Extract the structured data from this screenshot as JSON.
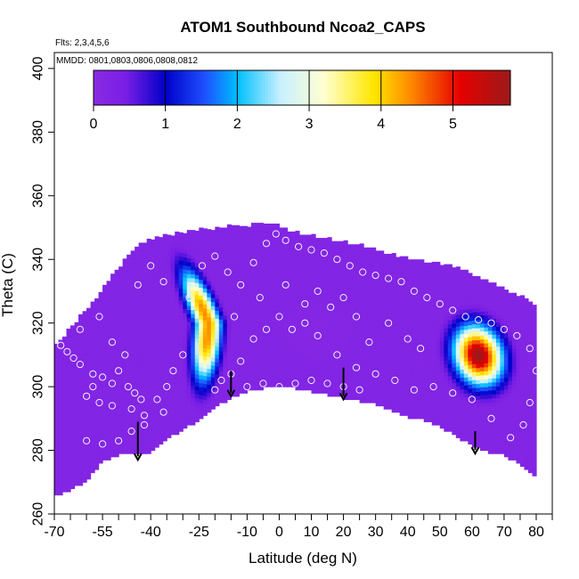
{
  "chart_data": {
    "type": "heatmap",
    "title": "ATOM1 Southbound Ncoa2_CAPS",
    "notes": [
      "Flts: 2,3,4,5,6",
      "MMDD: 0801,0803,0806,0808,0812"
    ],
    "xlabel": "Latitude (deg N)",
    "ylabel": "Theta (C)",
    "xlim": [
      -70,
      85
    ],
    "ylim": [
      260,
      405
    ],
    "x_ticks": [
      -70,
      -55,
      -40,
      -25,
      -10,
      0,
      10,
      20,
      30,
      40,
      50,
      60,
      70,
      80
    ],
    "x_tick_labels": [
      "-70",
      "-55",
      "-40",
      "-25",
      "-10",
      "0",
      "10",
      "20",
      "30",
      "40",
      "50",
      "60",
      "70",
      "80"
    ],
    "x_minor_ticks": [
      -65,
      -60,
      -50,
      -45,
      -35,
      -30,
      -20,
      -15,
      -5,
      5,
      15,
      25,
      35,
      45,
      55,
      65,
      75,
      85
    ],
    "y_ticks": [
      260,
      280,
      300,
      320,
      340,
      360,
      380,
      400
    ],
    "y_tick_labels": [
      "260",
      "280",
      "300",
      "320",
      "340",
      "360",
      "380",
      "400"
    ],
    "colorbar": {
      "min": 0,
      "max": 5.8,
      "ticks": [
        0,
        1,
        2,
        3,
        4,
        5
      ],
      "tick_labels": [
        "0",
        "1",
        "2",
        "3",
        "4",
        "5"
      ],
      "colors": [
        "#8a2be2",
        "#7a1ee6",
        "#0000c8",
        "#1e50ff",
        "#00bfff",
        "#c8f0ff",
        "#ffffd2",
        "#ffe600",
        "#ff8c00",
        "#e60000",
        "#9b1a1a"
      ],
      "stops": [
        0,
        0.45,
        1.0,
        1.55,
        2.0,
        2.6,
        3.2,
        3.9,
        4.4,
        5.1,
        5.8
      ]
    },
    "background_value": 0.2,
    "coverage": {
      "lat": [
        -70,
        -65,
        -60,
        -55,
        -50,
        -45,
        -40,
        -35,
        -30,
        -25,
        -20,
        -15,
        -10,
        -5,
        0,
        5,
        10,
        15,
        20,
        25,
        30,
        35,
        40,
        45,
        50,
        55,
        60,
        65,
        70,
        75,
        80
      ],
      "bottom": [
        266,
        268,
        271,
        277,
        279,
        279,
        280,
        284,
        287,
        290,
        294,
        297,
        299,
        300,
        300,
        300,
        299,
        298,
        297,
        296,
        295,
        293,
        291,
        290,
        288,
        285,
        282,
        280,
        279,
        276,
        272
      ],
      "top": [
        312,
        318,
        324,
        330,
        337,
        343,
        346,
        347,
        348,
        349,
        349,
        350,
        350,
        351,
        350,
        348,
        347,
        346,
        345,
        344,
        343,
        341,
        340,
        339,
        338,
        337,
        335,
        333,
        330,
        328,
        325
      ]
    },
    "features": [
      {
        "name": "southern-ridge",
        "lat_top": -30,
        "theta_top": 340,
        "lat_mid": -22,
        "theta_mid": 320,
        "lat_bottom": -24,
        "theta_bottom": 298,
        "peak": 4.4
      },
      {
        "name": "northern-blob",
        "lat_center": 62,
        "theta_center": 310,
        "peak": 5.8
      }
    ],
    "samples": [
      [
        -68,
        313
      ],
      [
        -66,
        311
      ],
      [
        -64,
        309
      ],
      [
        -62,
        307
      ],
      [
        -58,
        304
      ],
      [
        -55,
        303
      ],
      [
        -52,
        301
      ],
      [
        -50,
        305
      ],
      [
        -47,
        300
      ],
      [
        -45,
        298
      ],
      [
        -43,
        296
      ],
      [
        -60,
        297
      ],
      [
        -56,
        295
      ],
      [
        -52,
        294
      ],
      [
        -46,
        293
      ],
      [
        -42,
        291
      ],
      [
        -38,
        296
      ],
      [
        -35,
        300
      ],
      [
        -33,
        305
      ],
      [
        -30,
        310
      ],
      [
        -28,
        328
      ],
      [
        -24,
        338
      ],
      [
        -20,
        341
      ],
      [
        -16,
        336
      ],
      [
        -12,
        332
      ],
      [
        -8,
        339
      ],
      [
        -4,
        345
      ],
      [
        -1,
        348
      ],
      [
        2,
        346
      ],
      [
        6,
        344
      ],
      [
        10,
        343
      ],
      [
        14,
        342
      ],
      [
        18,
        340
      ],
      [
        22,
        338
      ],
      [
        26,
        336
      ],
      [
        30,
        335
      ],
      [
        34,
        334
      ],
      [
        38,
        333
      ],
      [
        42,
        330
      ],
      [
        46,
        328
      ],
      [
        50,
        326
      ],
      [
        54,
        324
      ],
      [
        58,
        322
      ],
      [
        62,
        321
      ],
      [
        66,
        320
      ],
      [
        70,
        318
      ],
      [
        74,
        316
      ],
      [
        78,
        312
      ],
      [
        80,
        305
      ],
      [
        78,
        295
      ],
      [
        76,
        288
      ],
      [
        72,
        284
      ],
      [
        66,
        290
      ],
      [
        60,
        296
      ],
      [
        54,
        298
      ],
      [
        48,
        300
      ],
      [
        42,
        299
      ],
      [
        36,
        302
      ],
      [
        30,
        304
      ],
      [
        24,
        306
      ],
      [
        18,
        310
      ],
      [
        12,
        316
      ],
      [
        8,
        320
      ],
      [
        4,
        318
      ],
      [
        0,
        322
      ],
      [
        -4,
        318
      ],
      [
        -8,
        315
      ],
      [
        -12,
        308
      ],
      [
        -15,
        304
      ],
      [
        -18,
        302
      ],
      [
        -20,
        299
      ],
      [
        -10,
        300
      ],
      [
        -5,
        301
      ],
      [
        0,
        300
      ],
      [
        5,
        301
      ],
      [
        10,
        302
      ],
      [
        15,
        301
      ],
      [
        20,
        300
      ],
      [
        25,
        299
      ],
      [
        -60,
        283
      ],
      [
        -55,
        282
      ],
      [
        -50,
        283
      ],
      [
        -46,
        286
      ],
      [
        -42,
        288
      ],
      [
        -36,
        292
      ],
      [
        12,
        330
      ],
      [
        16,
        325
      ],
      [
        24,
        322
      ],
      [
        34,
        320
      ],
      [
        40,
        315
      ],
      [
        44,
        312
      ],
      [
        28,
        314
      ],
      [
        20,
        328
      ],
      [
        -14,
        322
      ],
      [
        -6,
        328
      ],
      [
        2,
        332
      ],
      [
        8,
        326
      ],
      [
        -36,
        333
      ],
      [
        -40,
        338
      ],
      [
        -44,
        332
      ],
      [
        -56,
        322
      ],
      [
        -62,
        318
      ],
      [
        -48,
        310
      ],
      [
        -52,
        314
      ],
      [
        -58,
        300
      ]
    ],
    "arrows": [
      {
        "lat": -44,
        "theta_from": 289,
        "theta_to": 277
      },
      {
        "lat": -15,
        "theta_from": 305,
        "theta_to": 297
      },
      {
        "lat": 20,
        "theta_from": 306,
        "theta_to": 296
      },
      {
        "lat": 61,
        "theta_from": 286,
        "theta_to": 279
      }
    ]
  }
}
